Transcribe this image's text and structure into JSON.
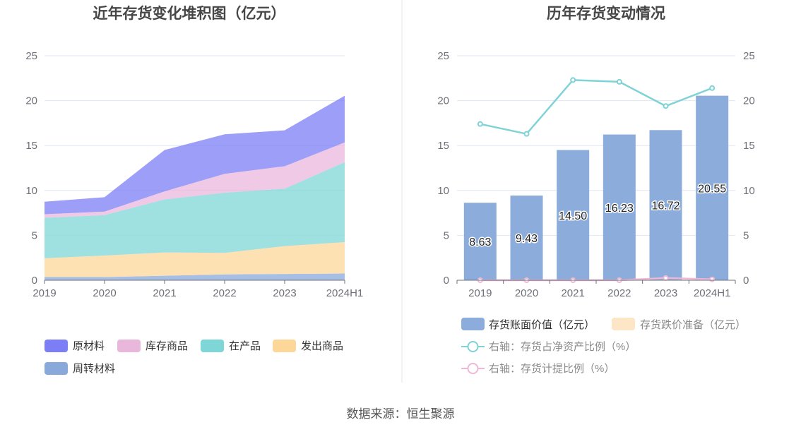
{
  "source": "数据来源：恒生聚源",
  "chart_data": [
    {
      "type": "area",
      "title": "近年存货变化堆积图（亿元）",
      "categories": [
        "2019",
        "2020",
        "2021",
        "2022",
        "2023",
        "2024H1"
      ],
      "stacked": true,
      "ylim": [
        0,
        25
      ],
      "yticks": [
        0,
        5,
        10,
        15,
        20,
        25
      ],
      "grid": true,
      "legend_position": "bottom",
      "series": [
        {
          "name": "原材料",
          "color": "#7b7ef5",
          "values": [
            1.4,
            1.6,
            4.6,
            4.4,
            4.0,
            5.2
          ]
        },
        {
          "name": "库存商品",
          "color": "#e9b7dc",
          "values": [
            0.4,
            0.4,
            0.9,
            2.1,
            2.5,
            2.2
          ]
        },
        {
          "name": "在产品",
          "color": "#7fd6d6",
          "values": [
            4.5,
            4.5,
            5.9,
            6.7,
            6.4,
            8.9
          ]
        },
        {
          "name": "发出商品",
          "color": "#fdd79a",
          "values": [
            2.1,
            2.4,
            2.6,
            2.4,
            3.1,
            3.5
          ]
        },
        {
          "name": "周转材料",
          "color": "#8aa9db",
          "values": [
            0.35,
            0.35,
            0.5,
            0.65,
            0.7,
            0.75
          ]
        }
      ]
    },
    {
      "type": "bar",
      "title": "历年存货变动情况",
      "categories": [
        "2019",
        "2020",
        "2021",
        "2022",
        "2023",
        "2024H1"
      ],
      "ylim": [
        0,
        25
      ],
      "yticks": [
        0,
        5,
        10,
        15,
        20,
        25
      ],
      "y2lim": [
        0,
        25
      ],
      "y2ticks": [
        0,
        5,
        10,
        15,
        20,
        25
      ],
      "grid": true,
      "legend_position": "bottom",
      "series": [
        {
          "name": "存货账面价值（亿元）",
          "type": "bar",
          "axis": "left",
          "color": "#8cacdb",
          "values": [
            8.63,
            9.43,
            14.5,
            16.23,
            16.72,
            20.55
          ],
          "labels": [
            "8.63",
            "9.43",
            "14.50",
            "16.23",
            "16.72",
            "20.55"
          ]
        },
        {
          "name": "存货跌价准备（亿元）",
          "type": "bar",
          "axis": "left",
          "color": "#fde6c6",
          "values": [
            0,
            0,
            0,
            0,
            0,
            0
          ]
        },
        {
          "name": "右轴：存货占净资产比例（%）",
          "type": "line",
          "axis": "right",
          "color": "#7fd3d6",
          "values": [
            17.4,
            16.3,
            22.3,
            22.1,
            19.4,
            21.4
          ]
        },
        {
          "name": "右轴：存货计提比例（%）",
          "type": "line",
          "axis": "right",
          "color": "#efb8d6",
          "values": [
            0.0,
            0.0,
            0.0,
            0.0,
            0.25,
            0.1
          ]
        }
      ]
    }
  ]
}
